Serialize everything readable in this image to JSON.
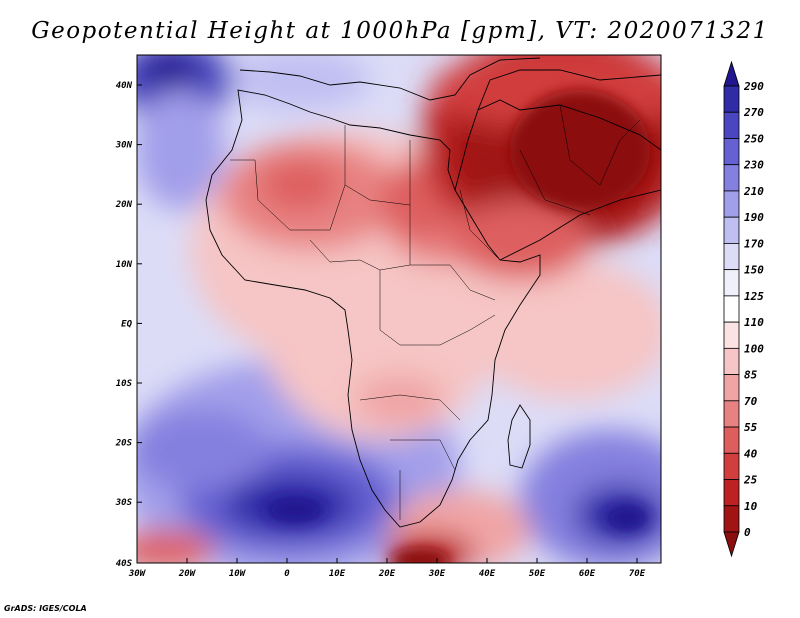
{
  "title": "Geopotential Height at 1000hPa [gpm], VT: 2020071321",
  "footer": "GrADS: IGES/COLA",
  "lat_ticks": [
    "40N",
    "30N",
    "20N",
    "10N",
    "EQ",
    "10S",
    "20S",
    "30S",
    "40S"
  ],
  "lon_ticks": [
    "30W",
    "20W",
    "10W",
    "0",
    "10E",
    "20E",
    "30E",
    "40E",
    "50E",
    "60E",
    "70E"
  ],
  "colorbar": {
    "labels": [
      "290",
      "270",
      "250",
      "230",
      "210",
      "190",
      "170",
      "150",
      "125",
      "110",
      "100",
      "85",
      "70",
      "55",
      "40",
      "25",
      "10",
      "0"
    ],
    "colors": [
      "#22168f",
      "#2f2ca6",
      "#4a46bf",
      "#6561d2",
      "#8480df",
      "#a29fea",
      "#c0bff2",
      "#dcdcf7",
      "#f0f0fb",
      "#ffffff",
      "#fbe3e3",
      "#f6c5c5",
      "#f0a4a4",
      "#e88282",
      "#de5e5e",
      "#d13e3e",
      "#bd2222",
      "#a01414",
      "#8b0e0e"
    ]
  },
  "colors": {
    "border": "#000000",
    "background": "#ffffff"
  }
}
